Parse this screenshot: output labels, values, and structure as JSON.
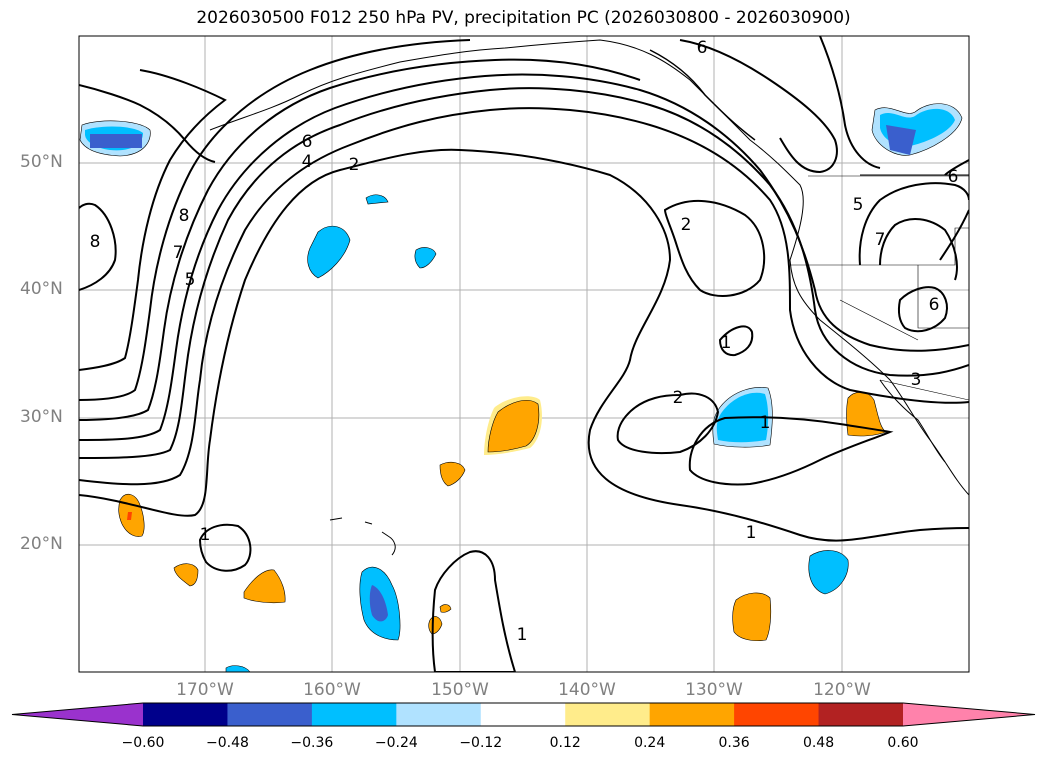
{
  "title": "2026030500 F012 250 hPa PV, precipitation PC (2026030800 - 2026030900)",
  "lat_labels": [
    "50°N",
    "40°N",
    "30°N",
    "20°N"
  ],
  "lon_labels": [
    "170°W",
    "160°W",
    "150°W",
    "140°W",
    "130°W",
    "120°W"
  ],
  "contour_labels": [
    "6",
    "4",
    "2",
    "8",
    "7",
    "5",
    "8",
    "6",
    "2",
    "1",
    "2",
    "1",
    "1",
    "1",
    "1",
    "5",
    "7",
    "6",
    "3",
    "6"
  ],
  "colorbar": {
    "ticks": [
      "−0.60",
      "−0.48",
      "−0.36",
      "−0.24",
      "−0.12",
      "0.12",
      "0.24",
      "0.36",
      "0.48",
      "0.60"
    ],
    "colors": [
      "#9a32cd",
      "#00008b",
      "#3a5fcd",
      "#00bfff",
      "#b0e2ff",
      "#ffffff",
      "#ffec8b",
      "#ffa500",
      "#ff4500",
      "#b22222",
      "#ff82ab"
    ]
  }
}
